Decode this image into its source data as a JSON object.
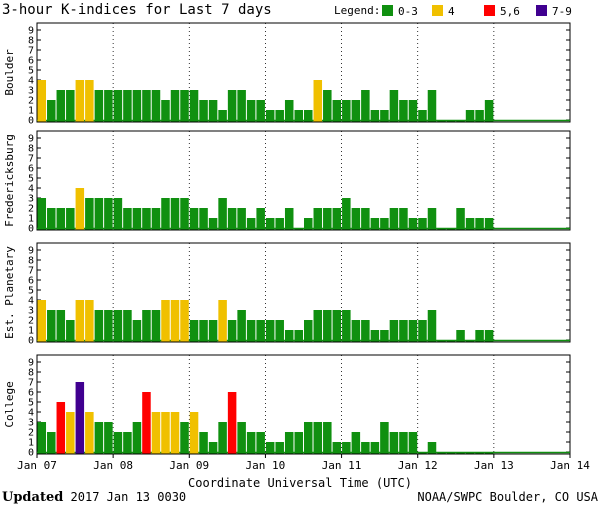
{
  "title": "3-hour K-indices for Last 7 days",
  "legend": {
    "label": "Legend:",
    "items": [
      {
        "label": "0-3",
        "color": "#109010"
      },
      {
        "label": "4",
        "color": "#f0c000"
      },
      {
        "label": "5,6",
        "color": "#ff0000"
      },
      {
        "label": "7-9",
        "color": "#400090"
      }
    ]
  },
  "xlabel": "Coordinate Universal Time (UTC)",
  "footer": {
    "updated_label": "Updated",
    "updated_value": "2017 Jan 13 0030",
    "credit": "NOAA/SWPC Boulder, CO USA"
  },
  "chart_data": {
    "type": "bar",
    "x_ticks": [
      "Jan 07",
      "Jan 08",
      "Jan 09",
      "Jan 10",
      "Jan 11",
      "Jan 12",
      "Jan 13",
      "Jan 14"
    ],
    "y_ticks": [
      0,
      1,
      2,
      3,
      4,
      5,
      6,
      7,
      8,
      9
    ],
    "ylim": [
      0,
      9
    ],
    "bins_per_day": 8,
    "panels": [
      {
        "name": "Boulder",
        "values": [
          4,
          2,
          3,
          3,
          4,
          4,
          3,
          3,
          3,
          3,
          3,
          3,
          3,
          2,
          3,
          3,
          3,
          2,
          2,
          1,
          3,
          3,
          2,
          2,
          1,
          1,
          2,
          1,
          1,
          4,
          3,
          2,
          2,
          2,
          3,
          1,
          1,
          3,
          2,
          2,
          1,
          3,
          0,
          0,
          0,
          1,
          1,
          2
        ]
      },
      {
        "name": "Fredericksburg",
        "values": [
          3,
          2,
          2,
          2,
          4,
          3,
          3,
          3,
          3,
          2,
          2,
          2,
          2,
          3,
          3,
          3,
          2,
          2,
          1,
          3,
          2,
          2,
          1,
          2,
          1,
          1,
          2,
          0,
          1,
          2,
          2,
          2,
          3,
          2,
          2,
          1,
          1,
          2,
          2,
          1,
          1,
          2,
          0,
          0,
          2,
          1,
          1,
          1
        ]
      },
      {
        "name": "Est. Planetary",
        "values": [
          4,
          3,
          3,
          2,
          4,
          4,
          3,
          3,
          3,
          3,
          2,
          3,
          3,
          4,
          4,
          4,
          2,
          2,
          2,
          4,
          2,
          3,
          2,
          2,
          2,
          2,
          1,
          1,
          2,
          3,
          3,
          3,
          3,
          2,
          2,
          1,
          1,
          2,
          2,
          2,
          2,
          3,
          0,
          0,
          1,
          0,
          1,
          1
        ]
      },
      {
        "name": "College",
        "values": [
          3,
          2,
          5,
          4,
          7,
          4,
          3,
          3,
          2,
          2,
          3,
          6,
          4,
          4,
          4,
          3,
          4,
          2,
          1,
          3,
          6,
          3,
          2,
          2,
          1,
          1,
          2,
          2,
          3,
          3,
          3,
          1,
          1,
          2,
          1,
          1,
          3,
          2,
          2,
          2,
          0,
          1,
          0,
          0,
          0,
          0,
          0,
          0
        ]
      }
    ]
  }
}
